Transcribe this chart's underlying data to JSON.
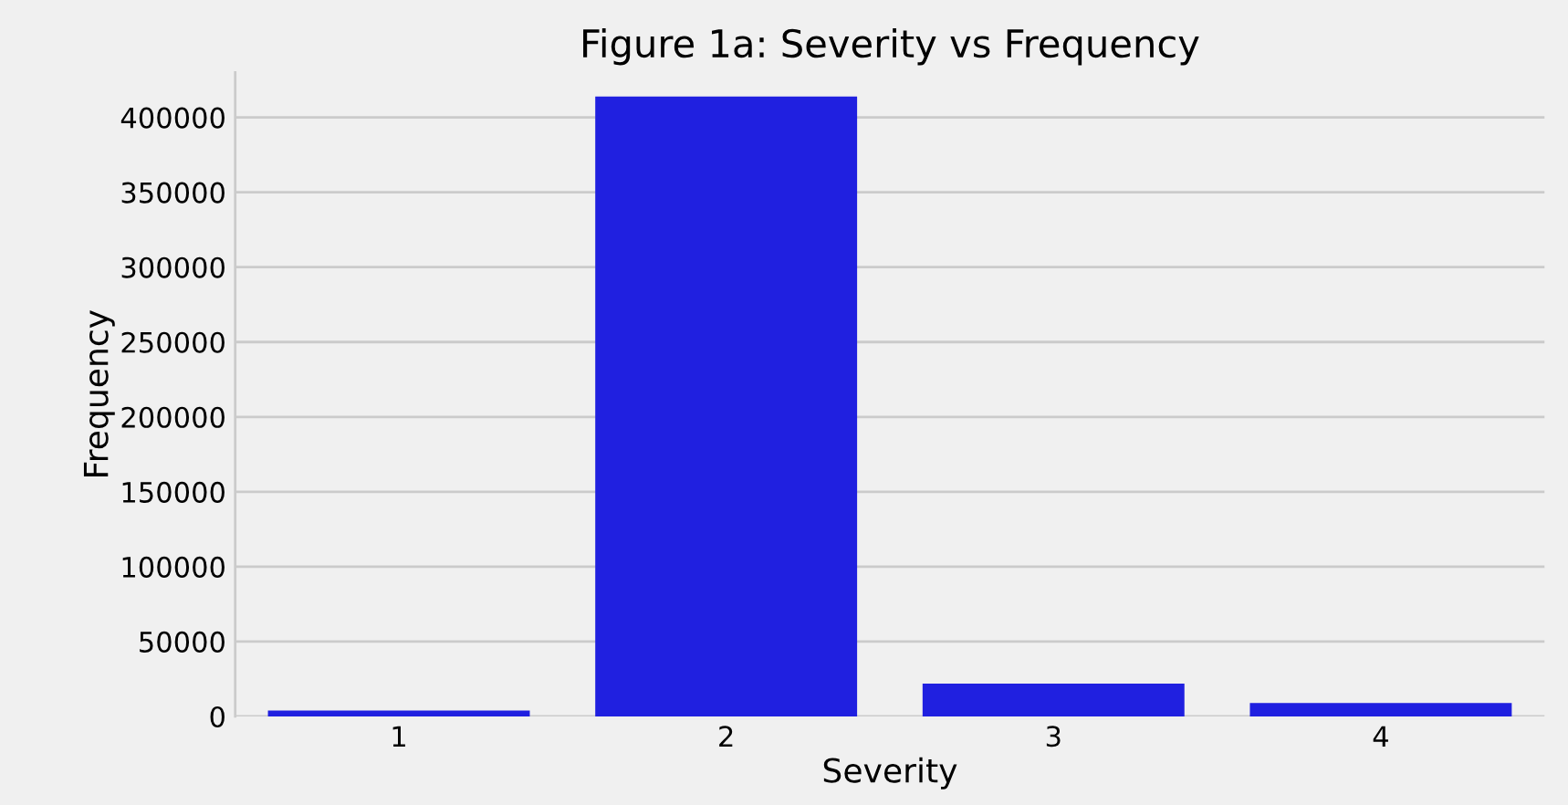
{
  "chart_data": {
    "type": "bar",
    "title": "Figure 1a: Severity vs Frequency",
    "xlabel": "Severity",
    "ylabel": "Frequency",
    "categories": [
      "1",
      "2",
      "3",
      "4"
    ],
    "values": [
      4000,
      414000,
      22000,
      9000
    ],
    "color": "#2020e0",
    "ylim": [
      0,
      430000
    ],
    "yticks": [
      0,
      50000,
      100000,
      150000,
      200000,
      250000,
      300000,
      350000,
      400000
    ],
    "grid": "y",
    "legend": false
  }
}
